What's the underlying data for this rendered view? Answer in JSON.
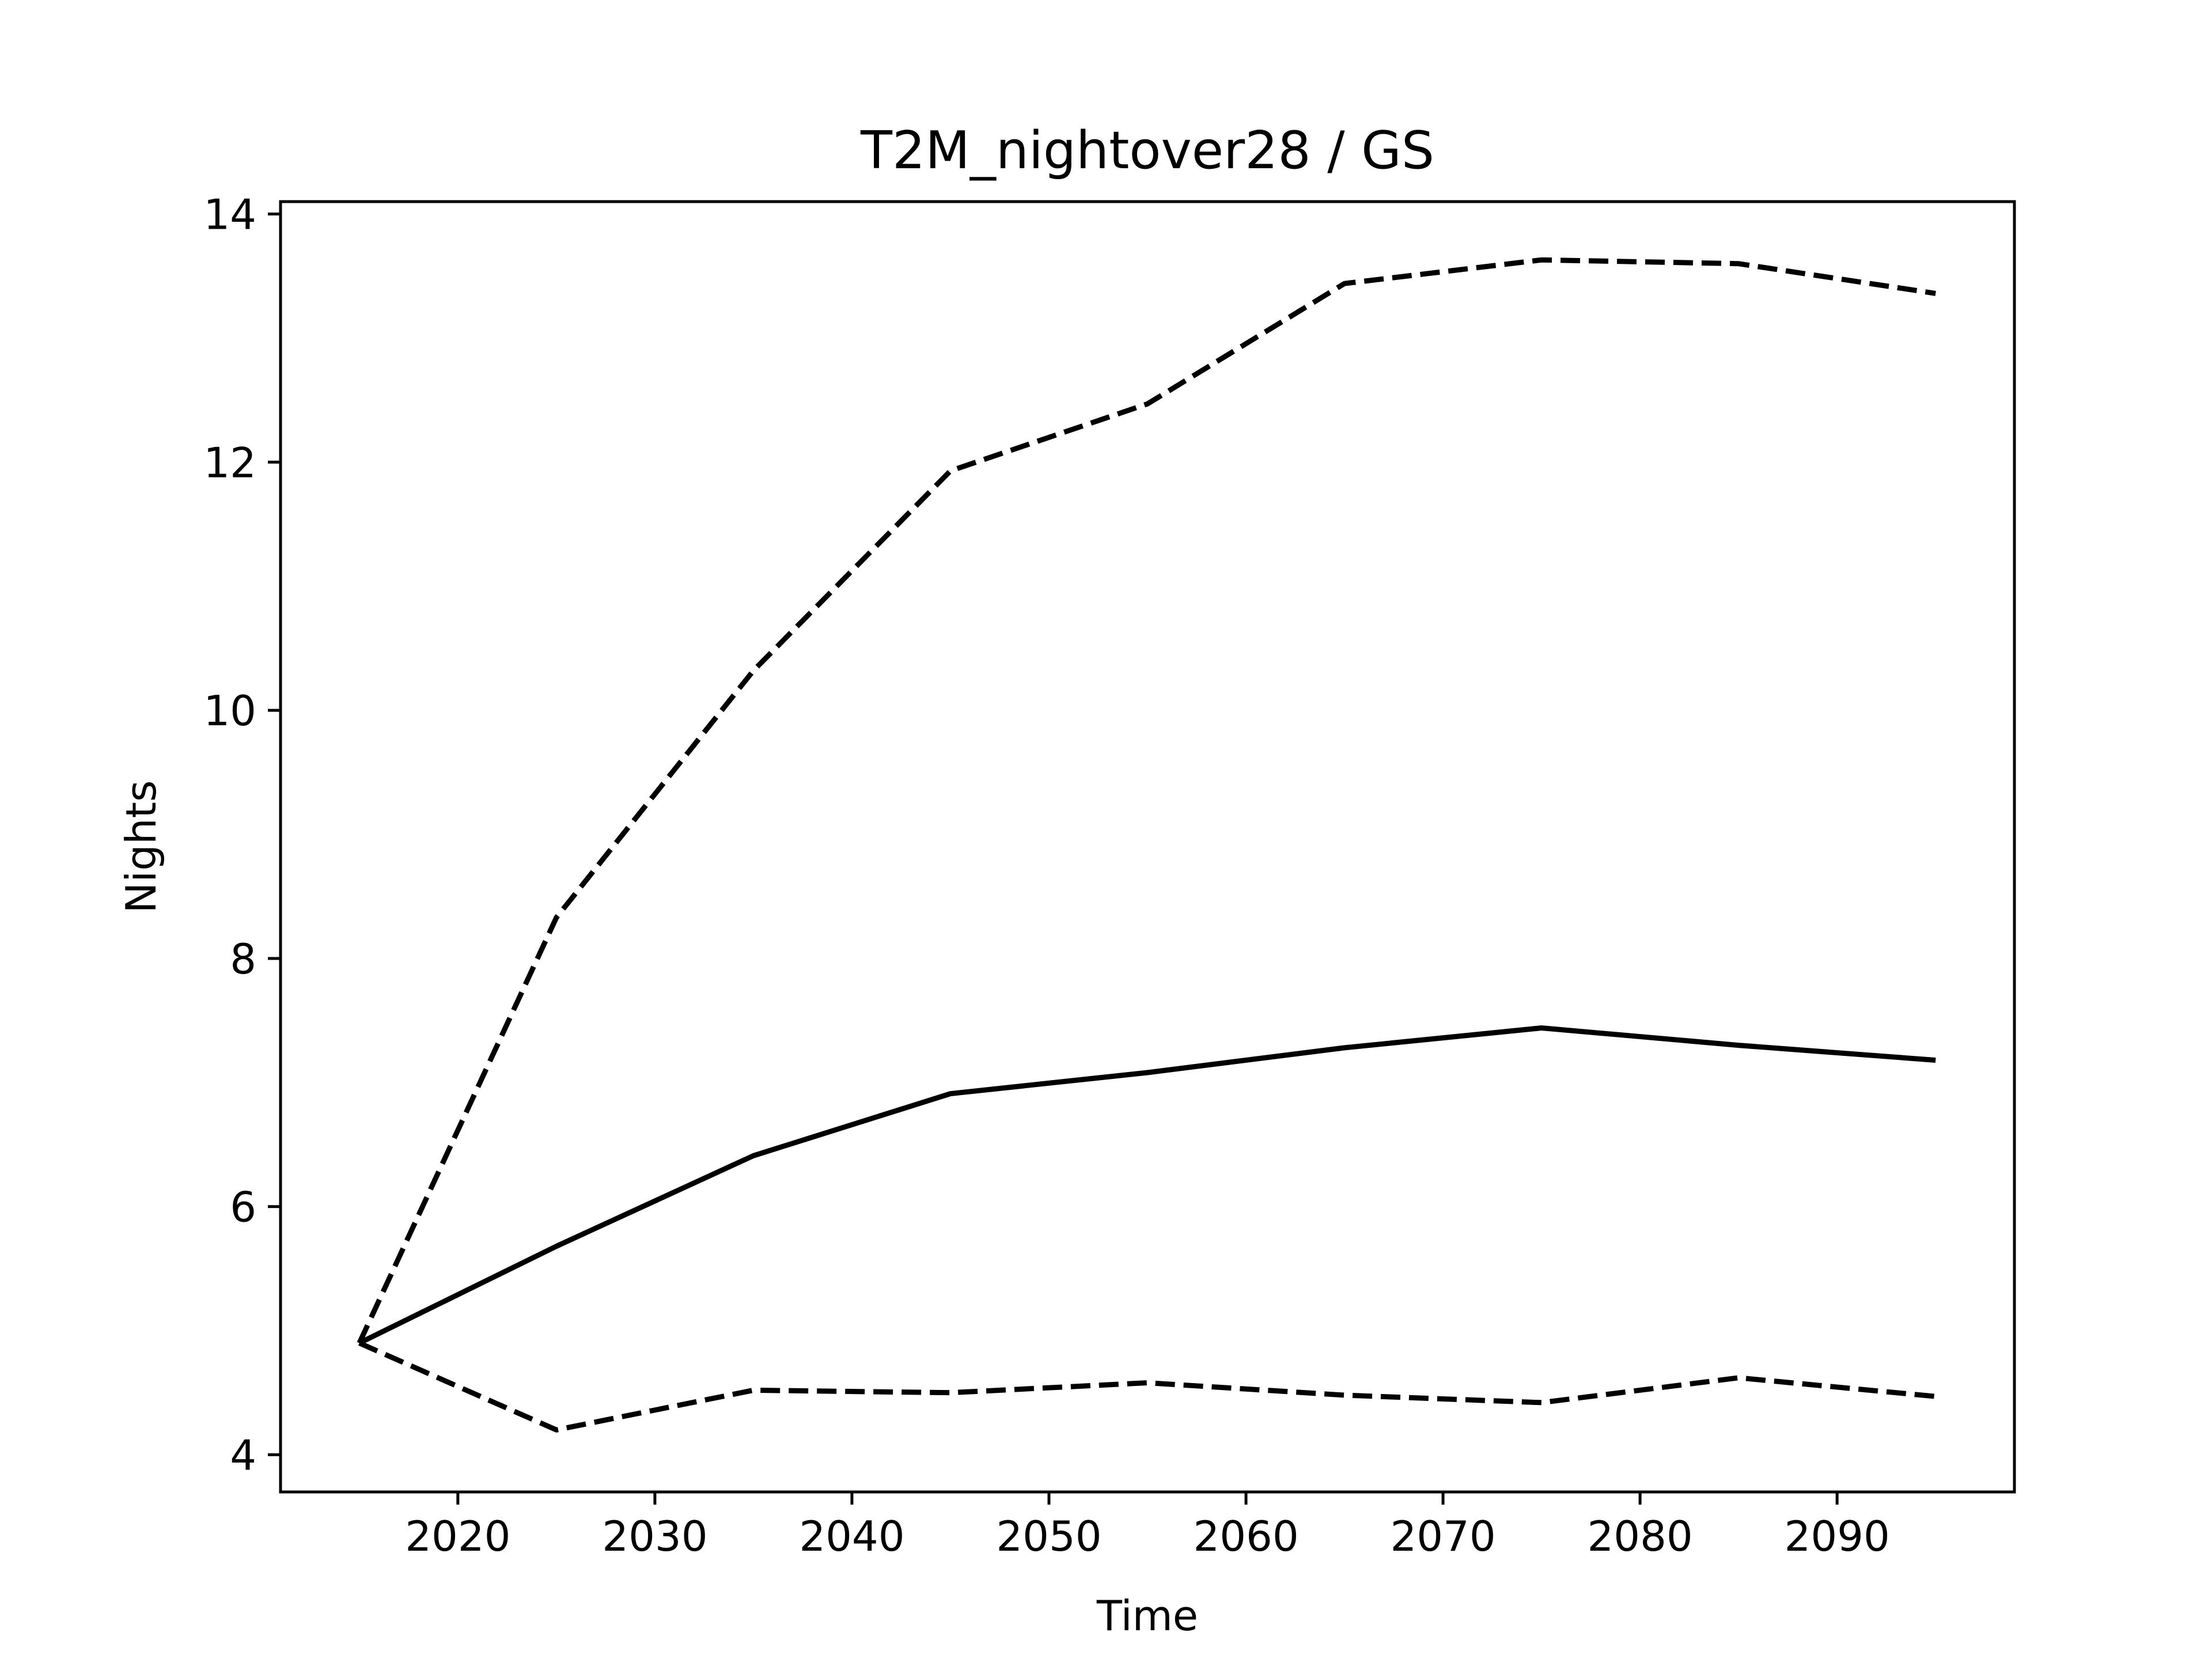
{
  "chart_data": {
    "type": "line",
    "title": "T2M_nightover28 / GS",
    "xlabel": "Time",
    "ylabel": "Nights",
    "xlim": [
      2011,
      2099
    ],
    "ylim": [
      3.7,
      14.1
    ],
    "xticks": [
      2020,
      2030,
      2040,
      2050,
      2060,
      2070,
      2080,
      2090
    ],
    "yticks": [
      4,
      6,
      8,
      10,
      12,
      14
    ],
    "grid": false,
    "legend": "none",
    "x": [
      2015,
      2025,
      2035,
      2045,
      2055,
      2065,
      2075,
      2085,
      2095
    ],
    "series": [
      {
        "style": "dashed",
        "color": "#000000",
        "values": [
          4.9,
          8.33,
          10.32,
          11.93,
          12.47,
          13.44,
          13.63,
          13.6,
          13.36
        ]
      },
      {
        "style": "solid",
        "color": "#000000",
        "values": [
          4.9,
          5.68,
          6.41,
          6.91,
          7.08,
          7.28,
          7.44,
          7.3,
          7.18
        ]
      },
      {
        "style": "dashed",
        "color": "#000000",
        "values": [
          4.9,
          4.2,
          4.52,
          4.5,
          4.58,
          4.48,
          4.42,
          4.62,
          4.47
        ]
      }
    ]
  }
}
